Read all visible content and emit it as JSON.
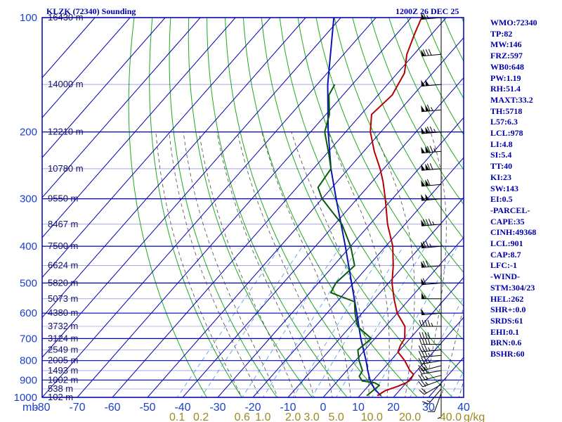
{
  "title": "KLZK (72340) Sounding",
  "time_label": "1200Z 26 DEC 25",
  "pressure_unit_label": "mb",
  "mixing_unit_label": "g/kg",
  "indices": [
    "WMO:72340",
    "TP:82",
    "MW:146",
    "FRZ:597",
    "WB0:648",
    "PW:1.19",
    "RH:51.4",
    "MAXT:33.2",
    "TH:5718",
    "L57:6.3",
    "LCL:978",
    "LI:4.8",
    "SI:5.4",
    "TT:40",
    "KI:23",
    "SW:143",
    "EI:0.5",
    "-PARCEL-",
    "CAPE:35",
    "CINH:49368",
    "LCL:901",
    "CAP:8.7",
    "LFC:-1",
    "-WIND-",
    "STM:304/23",
    "HEL:262",
    "SHR+:0.0",
    "SRDS:61",
    "EHI:0.1",
    "BRN:0.6",
    "BSHR:60"
  ],
  "colors": {
    "grid": "#0000b4",
    "dry_adiabat": "#1eaa1e",
    "moist_adiabat": "#4a4a4a",
    "mixing_ratio": "#5aa0e6",
    "temperature": "#b40000",
    "dewpoint": "#0a5a0a",
    "parcel": "#0a14b4",
    "text": "#0000aa"
  },
  "chart_data": {
    "type": "skew-t log-p",
    "pressure_levels": [
      100,
      200,
      300,
      400,
      500,
      600,
      700,
      800,
      900,
      1000
    ],
    "pressure_tick_labels": [
      "100",
      "200",
      "300",
      "400",
      "500",
      "600",
      "700",
      "800",
      "900",
      "1000"
    ],
    "temperature_ticks": [
      -80,
      -70,
      -60,
      -50,
      -40,
      -30,
      -20,
      -10,
      0,
      10,
      20,
      30,
      40
    ],
    "temperature_tick_labels": [
      "-80",
      "-70",
      "-60",
      "-50",
      "-40",
      "-30",
      "-20",
      "-10",
      "0",
      "10",
      "20",
      "30",
      "40"
    ],
    "xlim": [
      -80,
      40
    ],
    "ylim": [
      1000,
      100
    ],
    "height_labels": [
      {
        "p": 100,
        "label": "16430 m"
      },
      {
        "p": 150,
        "label": "14000 m"
      },
      {
        "p": 200,
        "label": "12210 m"
      },
      {
        "p": 250,
        "label": "10780 m"
      },
      {
        "p": 300,
        "label": "9550 m"
      },
      {
        "p": 350,
        "label": "8467 m"
      },
      {
        "p": 400,
        "label": "7500 m"
      },
      {
        "p": 450,
        "label": "6624 m"
      },
      {
        "p": 500,
        "label": "5820 m"
      },
      {
        "p": 550,
        "label": "5073 m"
      },
      {
        "p": 600,
        "label": "4380 m"
      },
      {
        "p": 650,
        "label": "3732 m"
      },
      {
        "p": 700,
        "label": "3124 m"
      },
      {
        "p": 750,
        "label": "2549 m"
      },
      {
        "p": 800,
        "label": "2005 m"
      },
      {
        "p": 850,
        "label": "1493 m"
      },
      {
        "p": 900,
        "label": "1002 m"
      },
      {
        "p": 950,
        "label": "538 m"
      },
      {
        "p": 1000,
        "label": "102 m"
      }
    ],
    "mixing_ratio_labels": [
      {
        "w": 0.1,
        "label": "0.1"
      },
      {
        "w": 0.2,
        "label": "0.2"
      },
      {
        "w": 0.6,
        "label": "0.6"
      },
      {
        "w": 1.0,
        "label": "1.0"
      },
      {
        "w": 2.0,
        "label": "2.0"
      },
      {
        "w": 3.0,
        "label": "3.0"
      },
      {
        "w": 5.0,
        "label": "5.0"
      },
      {
        "w": 10.0,
        "label": "10.0"
      },
      {
        "w": 20.0,
        "label": "20.0"
      },
      {
        "w": 40.0,
        "label": "40.0"
      }
    ],
    "temperature_profile": [
      {
        "p": 990,
        "t": 15.0
      },
      {
        "p": 960,
        "t": 16.0
      },
      {
        "p": 935,
        "t": 18.5
      },
      {
        "p": 915,
        "t": 20.0
      },
      {
        "p": 900,
        "t": 20.5
      },
      {
        "p": 870,
        "t": 20.0
      },
      {
        "p": 850,
        "t": 18.0
      },
      {
        "p": 800,
        "t": 14.0
      },
      {
        "p": 760,
        "t": 10.0
      },
      {
        "p": 730,
        "t": 9.0
      },
      {
        "p": 700,
        "t": 8.5
      },
      {
        "p": 650,
        "t": 5.5
      },
      {
        "p": 600,
        "t": 0.0
      },
      {
        "p": 550,
        "t": -4.5
      },
      {
        "p": 500,
        "t": -9.0
      },
      {
        "p": 450,
        "t": -13.0
      },
      {
        "p": 400,
        "t": -18.0
      },
      {
        "p": 350,
        "t": -25.0
      },
      {
        "p": 300,
        "t": -32.0
      },
      {
        "p": 270,
        "t": -37.0
      },
      {
        "p": 250,
        "t": -41.0
      },
      {
        "p": 225,
        "t": -47.0
      },
      {
        "p": 200,
        "t": -53.0
      },
      {
        "p": 180,
        "t": -57.0
      },
      {
        "p": 160,
        "t": -56.0
      },
      {
        "p": 140,
        "t": -58.0
      },
      {
        "p": 125,
        "t": -62.0
      },
      {
        "p": 110,
        "t": -65.0
      },
      {
        "p": 100,
        "t": -67.0
      }
    ],
    "dewpoint_profile": [
      {
        "p": 990,
        "t": 12.0
      },
      {
        "p": 960,
        "t": 12.5
      },
      {
        "p": 930,
        "t": 13.0
      },
      {
        "p": 915,
        "t": 11.0
      },
      {
        "p": 905,
        "t": 7.0
      },
      {
        "p": 880,
        "t": 5.0
      },
      {
        "p": 850,
        "t": 4.5
      },
      {
        "p": 800,
        "t": 1.0
      },
      {
        "p": 750,
        "t": -2.0
      },
      {
        "p": 700,
        "t": -1.0
      },
      {
        "p": 650,
        "t": -8.0
      },
      {
        "p": 600,
        "t": -12.0
      },
      {
        "p": 560,
        "t": -15.0
      },
      {
        "p": 530,
        "t": -24.0
      },
      {
        "p": 500,
        "t": -25.0
      },
      {
        "p": 450,
        "t": -24.0
      },
      {
        "p": 400,
        "t": -30.0
      },
      {
        "p": 350,
        "t": -38.0
      },
      {
        "p": 320,
        "t": -45.0
      },
      {
        "p": 300,
        "t": -50.0
      },
      {
        "p": 280,
        "t": -54.0
      },
      {
        "p": 250,
        "t": -55.0
      },
      {
        "p": 230,
        "t": -59.0
      },
      {
        "p": 200,
        "t": -66.0
      },
      {
        "p": 180,
        "t": -69.0
      },
      {
        "p": 160,
        "t": -74.0
      },
      {
        "p": 150,
        "t": -75.0
      }
    ],
    "parcel_profile": [
      {
        "p": 990,
        "t": 16.0
      },
      {
        "p": 950,
        "t": 12.5
      },
      {
        "p": 900,
        "t": 9.0
      },
      {
        "p": 850,
        "t": 6.0
      },
      {
        "p": 800,
        "t": 3.0
      },
      {
        "p": 700,
        "t": -4.0
      },
      {
        "p": 600,
        "t": -11.5
      },
      {
        "p": 500,
        "t": -20.5
      },
      {
        "p": 400,
        "t": -31.5
      },
      {
        "p": 300,
        "t": -46.0
      },
      {
        "p": 250,
        "t": -55.0
      },
      {
        "p": 200,
        "t": -65.0
      },
      {
        "p": 150,
        "t": -77.0
      },
      {
        "p": 100,
        "t": -92.0
      }
    ],
    "wind_profile": [
      {
        "p": 1000,
        "dir": 180,
        "spd": 5
      },
      {
        "p": 975,
        "dir": 200,
        "spd": 10
      },
      {
        "p": 950,
        "dir": 220,
        "spd": 15
      },
      {
        "p": 925,
        "dir": 240,
        "spd": 20
      },
      {
        "p": 900,
        "dir": 250,
        "spd": 25
      },
      {
        "p": 875,
        "dir": 255,
        "spd": 25
      },
      {
        "p": 850,
        "dir": 260,
        "spd": 30
      },
      {
        "p": 825,
        "dir": 255,
        "spd": 30
      },
      {
        "p": 800,
        "dir": 260,
        "spd": 35
      },
      {
        "p": 775,
        "dir": 265,
        "spd": 35
      },
      {
        "p": 750,
        "dir": 265,
        "spd": 35
      },
      {
        "p": 725,
        "dir": 270,
        "spd": 40
      },
      {
        "p": 700,
        "dir": 270,
        "spd": 40
      },
      {
        "p": 650,
        "dir": 270,
        "spd": 45
      },
      {
        "p": 600,
        "dir": 265,
        "spd": 50
      },
      {
        "p": 550,
        "dir": 270,
        "spd": 55
      },
      {
        "p": 500,
        "dir": 265,
        "spd": 60
      },
      {
        "p": 450,
        "dir": 265,
        "spd": 70
      },
      {
        "p": 400,
        "dir": 265,
        "spd": 75
      },
      {
        "p": 350,
        "dir": 265,
        "spd": 85
      },
      {
        "p": 300,
        "dir": 265,
        "spd": 100
      },
      {
        "p": 275,
        "dir": 265,
        "spd": 110
      },
      {
        "p": 250,
        "dir": 265,
        "spd": 120
      },
      {
        "p": 225,
        "dir": 265,
        "spd": 125
      },
      {
        "p": 200,
        "dir": 265,
        "spd": 125
      },
      {
        "p": 175,
        "dir": 265,
        "spd": 115
      },
      {
        "p": 150,
        "dir": 265,
        "spd": 100
      },
      {
        "p": 125,
        "dir": 265,
        "spd": 80
      },
      {
        "p": 100,
        "dir": 265,
        "spd": 65
      }
    ],
    "grid": true
  }
}
